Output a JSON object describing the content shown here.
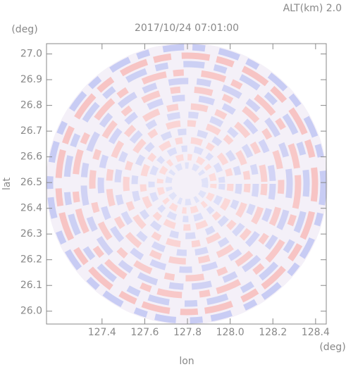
{
  "chart_data": {
    "type": "radar-ppi",
    "title": "2017/10/24 07:01:00",
    "subtitle": "ALT(km) 2.0",
    "x_label": "lon",
    "y_label": "lat",
    "x_unit": "(deg)",
    "y_unit": "(deg)",
    "xlim": [
      127.14,
      128.45
    ],
    "xticks": [
      127.4,
      127.6,
      127.8,
      {
        "value": 128.0,
        "label": "128.0"
      },
      128.2,
      128.4
    ],
    "ylim": [
      25.95,
      27.04
    ],
    "yticks": [
      {
        "value": 26.0,
        "label": "26.0"
      },
      26.1,
      26.2,
      26.3,
      26.4,
      26.5,
      26.6,
      26.7,
      26.8,
      26.9,
      {
        "value": 27.0,
        "label": "27.0"
      }
    ]
  }
}
